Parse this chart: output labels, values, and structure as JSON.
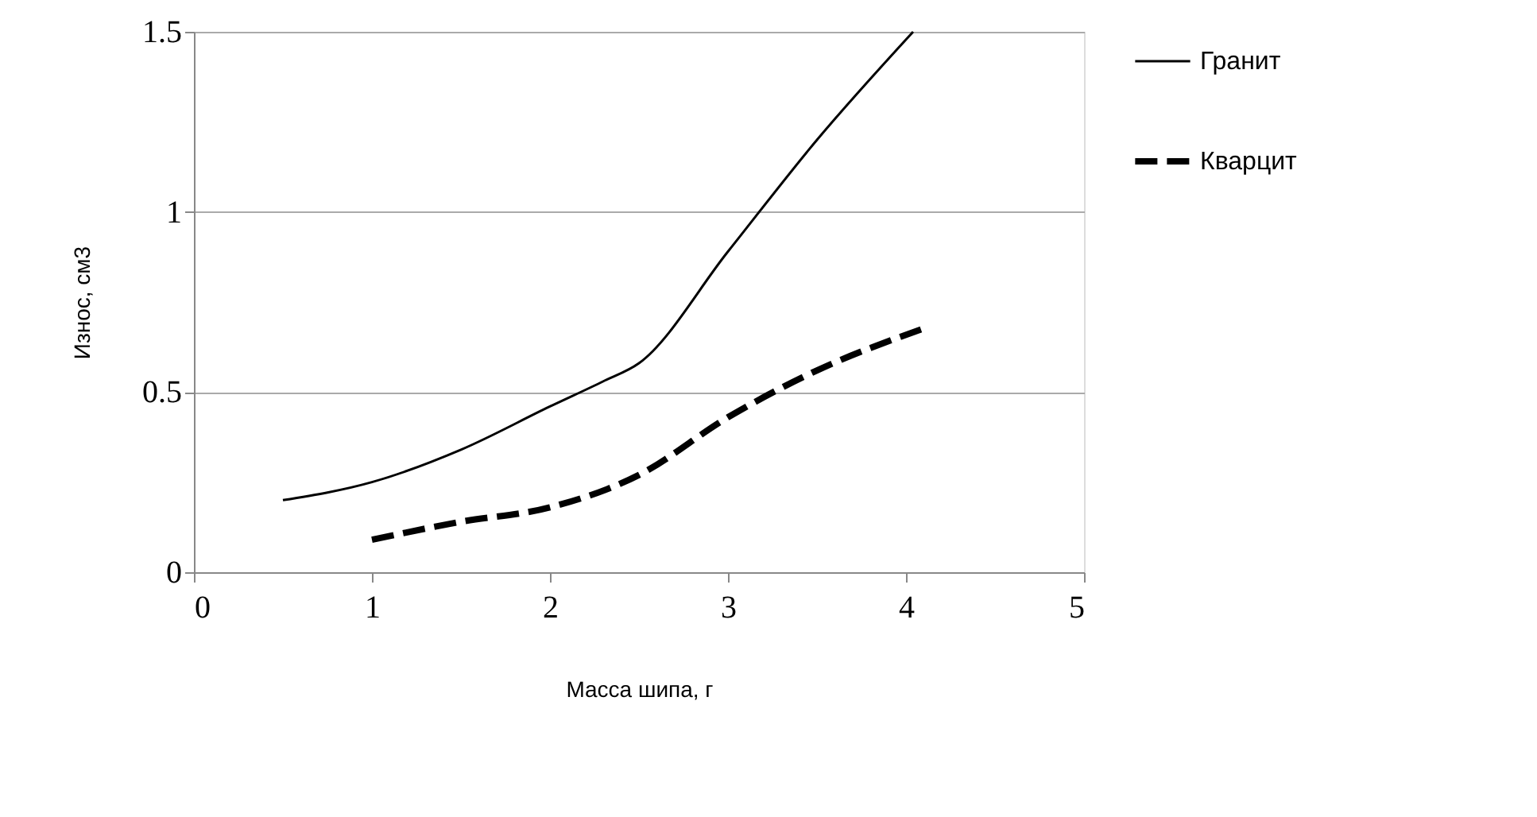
{
  "chart_data": {
    "type": "line",
    "xlabel": "Масса шипа, г",
    "ylabel": "Износ, см3",
    "xlim": [
      0,
      5
    ],
    "xticks": [
      0,
      1,
      2,
      3,
      4,
      5
    ],
    "ylim": [
      0,
      1.5
    ],
    "yticks": [
      0,
      0.5,
      1,
      1.5
    ],
    "grid": "y",
    "legend": "right",
    "series": [
      {
        "name": "Гранит",
        "color": "#000000",
        "line_style": "solid",
        "x": [
          0.5,
          1,
          1.5,
          2,
          2.3,
          2.5,
          3,
          3.5,
          4.04
        ],
        "values": [
          0.2,
          0.25,
          0.34,
          0.46,
          0.53,
          0.58,
          0.89,
          1.2,
          1.5
        ]
      },
      {
        "name": "Кварцит",
        "color": "#000000",
        "line_style": "dashed",
        "x": [
          1,
          1.5,
          2,
          2.5,
          3,
          3.5,
          4.12
        ],
        "values": [
          0.09,
          0.14,
          0.18,
          0.27,
          0.43,
          0.56,
          0.68
        ]
      }
    ]
  }
}
